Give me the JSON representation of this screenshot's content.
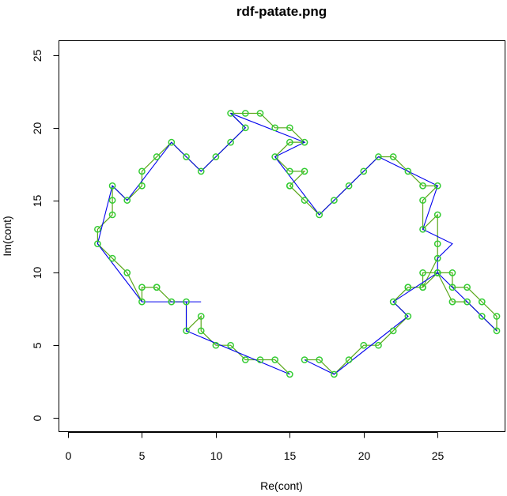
{
  "chart_data": {
    "type": "line",
    "title": "rdf-patate.png",
    "xlabel": "Re(cont)",
    "ylabel": "Im(cont)",
    "xlim": [
      0,
      29
    ],
    "ylim": [
      0,
      25
    ],
    "xticks": [
      0,
      5,
      10,
      15,
      20,
      25
    ],
    "yticks": [
      0,
      5,
      10,
      15,
      20,
      25
    ],
    "grid": false,
    "colors": {
      "full": "#5aa71a",
      "full_points": "#33cc33",
      "approx": "#0000ee"
    },
    "series": [
      {
        "style": "line+points",
        "x": [
          15,
          14,
          13,
          12,
          11,
          10,
          9,
          9,
          8,
          8,
          7,
          6,
          6,
          5,
          5,
          4,
          3,
          2,
          2,
          3,
          3,
          3,
          4,
          5,
          5,
          6,
          7,
          8,
          9,
          10,
          11,
          12,
          11,
          12,
          13,
          14,
          15,
          16,
          15,
          14,
          15,
          16,
          15,
          15,
          16,
          17,
          18,
          19,
          20,
          21,
          22,
          23,
          24,
          25,
          24,
          24,
          25,
          25,
          25,
          24,
          24,
          25,
          26,
          26,
          27,
          28,
          29,
          29,
          28,
          27,
          26,
          25,
          25,
          24,
          23,
          23,
          22,
          23,
          22,
          21,
          20,
          19,
          18,
          17,
          16
        ],
        "y": [
          3,
          4,
          4,
          4,
          5,
          5,
          6,
          7,
          6,
          8,
          8,
          9,
          9,
          9,
          8,
          10,
          11,
          12,
          13,
          14,
          15,
          16,
          15,
          16,
          17,
          18,
          19,
          18,
          17,
          18,
          19,
          20,
          21,
          21,
          21,
          20,
          20,
          19,
          19,
          18,
          17,
          17,
          16,
          16,
          15,
          14,
          15,
          16,
          17,
          18,
          18,
          17,
          16,
          16,
          15,
          13,
          14,
          12,
          11,
          9,
          10,
          10,
          10,
          9,
          9,
          8,
          7,
          6,
          7,
          8,
          8,
          10,
          10,
          9,
          9,
          9,
          8,
          7,
          6,
          5,
          5,
          4,
          3,
          4,
          4
        ]
      },
      {
        "style": "line",
        "x": [
          15,
          8,
          8,
          9,
          8,
          5,
          2,
          3,
          4,
          7,
          9,
          12,
          11,
          16,
          14,
          17,
          21,
          25,
          24,
          26,
          25,
          25,
          29,
          25,
          22,
          23,
          18,
          16
        ],
        "y": [
          3,
          6,
          8,
          8,
          8,
          8,
          12,
          16,
          15,
          19,
          17,
          20,
          21,
          19,
          18,
          14,
          18,
          16,
          13,
          12,
          11,
          10,
          6,
          10,
          8,
          7,
          3,
          4
        ]
      }
    ]
  }
}
